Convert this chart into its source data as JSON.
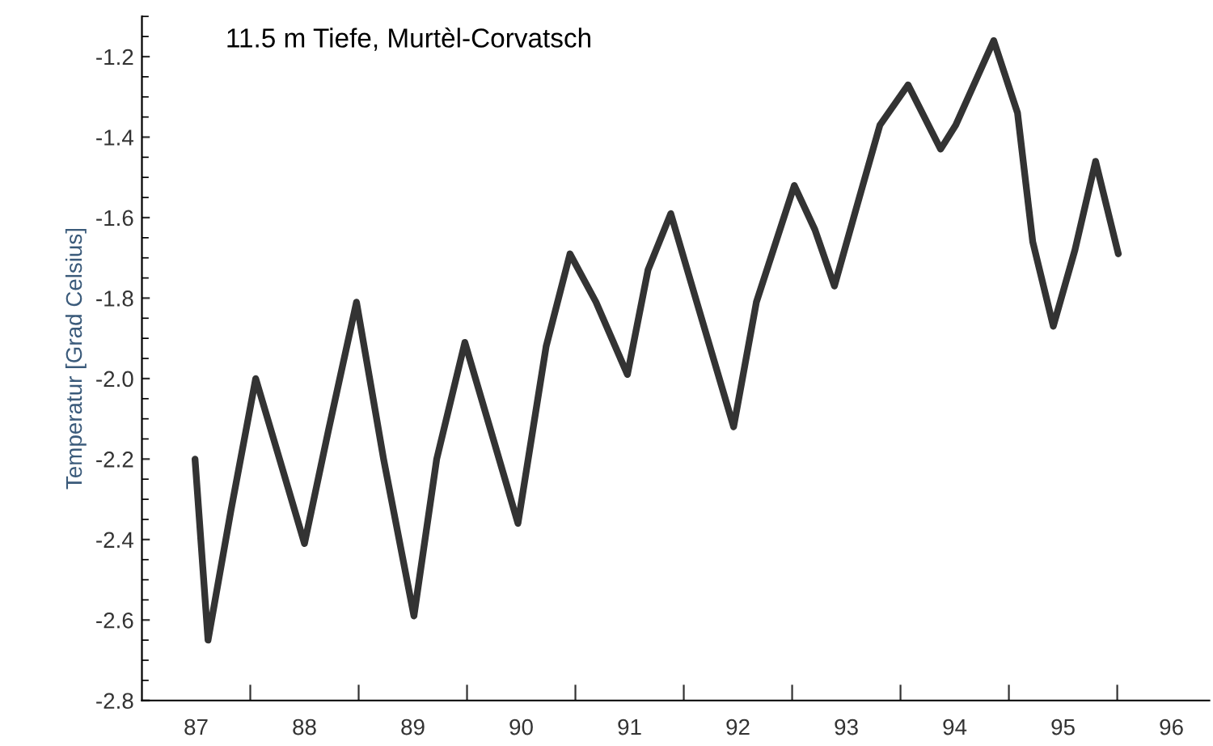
{
  "chart_data": {
    "type": "line",
    "title": "11.5 m Tiefe, Murtèl-Corvatsch",
    "ylabel": "Temperatur [Grad Celsius]",
    "series": [
      {
        "color": "#333333",
        "x": [
          87.49,
          87.61,
          87.82,
          88.05,
          88.27,
          88.5,
          88.72,
          88.98,
          89.23,
          89.51,
          89.72,
          89.98,
          90.22,
          90.47,
          90.73,
          90.95,
          91.19,
          91.48,
          91.67,
          91.88,
          92.12,
          92.46,
          92.67,
          93.02,
          93.21,
          93.39,
          93.62,
          93.81,
          94.07,
          94.37,
          94.51,
          94.86,
          95.08,
          95.22,
          95.41,
          95.61,
          95.8,
          96.01
        ],
        "values": [
          -2.2,
          -2.65,
          -2.33,
          -2.0,
          -2.2,
          -2.41,
          -2.13,
          -1.81,
          -2.2,
          -2.59,
          -2.2,
          -1.91,
          -2.13,
          -2.36,
          -1.92,
          -1.69,
          -1.81,
          -1.99,
          -1.73,
          -1.59,
          -1.81,
          -2.12,
          -1.81,
          -1.52,
          -1.63,
          -1.77,
          -1.55,
          -1.37,
          -1.27,
          -1.43,
          -1.37,
          -1.16,
          -1.34,
          -1.66,
          -1.87,
          -1.68,
          -1.46,
          -1.69
        ]
      }
    ],
    "xlim": [
      87,
      96.85
    ],
    "ylim": [
      -2.8,
      -1.1
    ],
    "xticks": [
      {
        "value": 87.5,
        "label": "87"
      },
      {
        "value": 88,
        "label": null
      },
      {
        "value": 88.5,
        "label": "88"
      },
      {
        "value": 89,
        "label": null
      },
      {
        "value": 89.5,
        "label": "89"
      },
      {
        "value": 90,
        "label": null
      },
      {
        "value": 90.5,
        "label": "90"
      },
      {
        "value": 91,
        "label": null
      },
      {
        "value": 91.5,
        "label": "91"
      },
      {
        "value": 92,
        "label": null
      },
      {
        "value": 92.5,
        "label": "92"
      },
      {
        "value": 93,
        "label": null
      },
      {
        "value": 93.5,
        "label": "93"
      },
      {
        "value": 94,
        "label": null
      },
      {
        "value": 94.5,
        "label": "94"
      },
      {
        "value": 95,
        "label": null
      },
      {
        "value": 95.5,
        "label": "95"
      },
      {
        "value": 96,
        "label": null
      },
      {
        "value": 96.5,
        "label": "96"
      }
    ],
    "yticks": [
      -2.8,
      -2.6,
      -2.4,
      -2.2,
      {
        "value": -2.0,
        "label": "-2.0"
      },
      -1.8,
      -1.6,
      -1.4,
      -1.2
    ],
    "grid": false,
    "legend": false,
    "marker": "none",
    "line_style": "solid"
  }
}
